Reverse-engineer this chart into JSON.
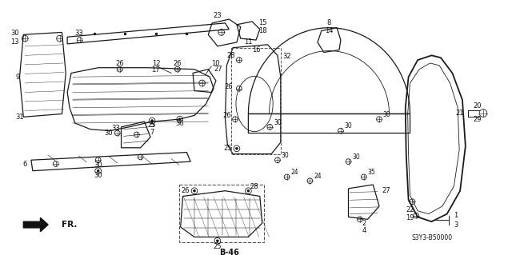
{
  "bg": "#ffffff",
  "lc": "#1a1a1a",
  "diagram_code": "S3Y3-B50000",
  "fw": 6.4,
  "fh": 3.19,
  "dpi": 100
}
